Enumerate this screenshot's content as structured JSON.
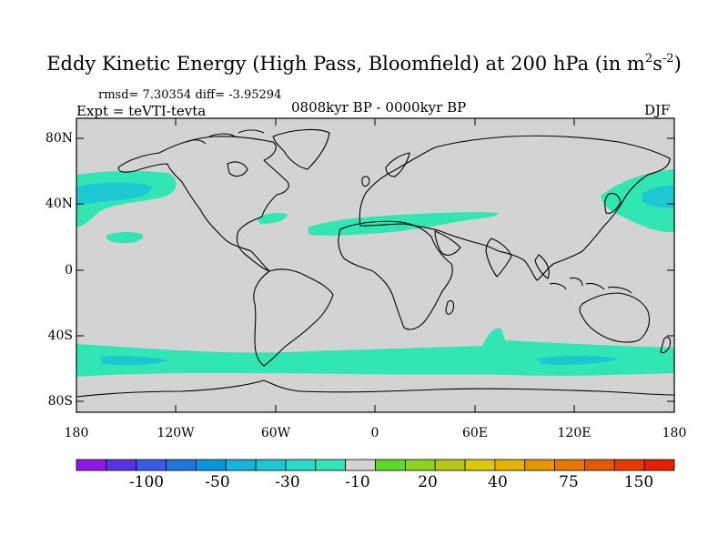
{
  "title": {
    "main": "Eddy Kinetic Energy (High Pass, Bloomfield) at 200 hPa (in m",
    "unit_sup1": "2",
    "unit_s": "s",
    "unit_sup2": "-2",
    "close": ")"
  },
  "stats": "rmsd= 7.30354 diff= -3.95294",
  "experiment": "Expt = teVTI-tevta",
  "period": "0808kyr BP - 0000kyr BP",
  "season": "DJF",
  "lat_labels": [
    "80N",
    "40N",
    "0",
    "40S",
    "80S"
  ],
  "lon_labels": [
    "180",
    "120W",
    "60W",
    "0",
    "60E",
    "120E",
    "180"
  ],
  "colorbar": {
    "colors": [
      "#8C1AE6",
      "#5A32E6",
      "#3C5AE6",
      "#1E78DC",
      "#0A96DC",
      "#14B4DC",
      "#1EC8D2",
      "#28DCC8",
      "#32E6B4",
      "#D3D3D3",
      "#5ADC28",
      "#8CD21E",
      "#B4C814",
      "#DCC80A",
      "#E6B400",
      "#E69600",
      "#E67800",
      "#E65A00",
      "#E63C00",
      "#E61E00"
    ],
    "labels": [
      "-100",
      "-50",
      "-30",
      "-10",
      "20",
      "40",
      "75",
      "150"
    ]
  },
  "map": {
    "land_color": "#D3D3D3",
    "anomaly_color": "#32E6B4",
    "anomaly_dark_color": "#1EC8D2"
  }
}
